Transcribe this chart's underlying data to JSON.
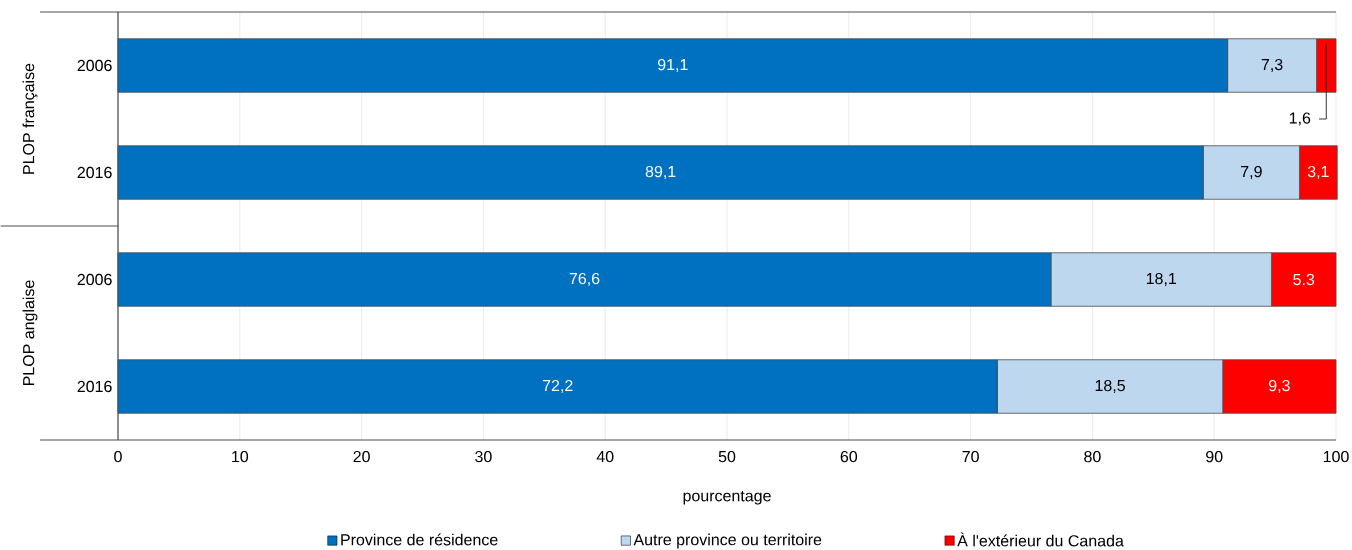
{
  "chart_data": {
    "type": "bar",
    "orientation": "horizontal",
    "stacked": true,
    "categories": [
      "2006",
      "2016",
      "2006",
      "2016"
    ],
    "series": [
      {
        "name": "Province de résidence",
        "color": "#0070c0",
        "values": [
          91.1,
          89.1,
          76.6,
          72.2
        ],
        "value_labels": [
          "91,1",
          "89,1",
          "76,6",
          "72,2"
        ]
      },
      {
        "name": "Autre province ou territoire",
        "color": "#bdd7ee",
        "values": [
          7.3,
          7.9,
          18.1,
          18.5
        ],
        "value_labels": [
          "7,3",
          "7,9",
          "18,1",
          "18,5"
        ]
      },
      {
        "name": "À l'extérieur du Canada",
        "color": "#ff0000",
        "values": [
          1.6,
          3.1,
          5.3,
          9.3
        ],
        "value_labels": [
          "1,6",
          "3,1",
          "5.3",
          "9,3"
        ]
      }
    ],
    "annotations": [
      "PLOP française",
      "PLOP anglaise"
    ],
    "xlabel": "pourcentage",
    "xlim": [
      0,
      100
    ],
    "xticks": [
      0,
      10,
      20,
      30,
      40,
      50,
      60,
      70,
      80,
      90,
      100
    ],
    "grid": "x",
    "legend": "bottom"
  }
}
